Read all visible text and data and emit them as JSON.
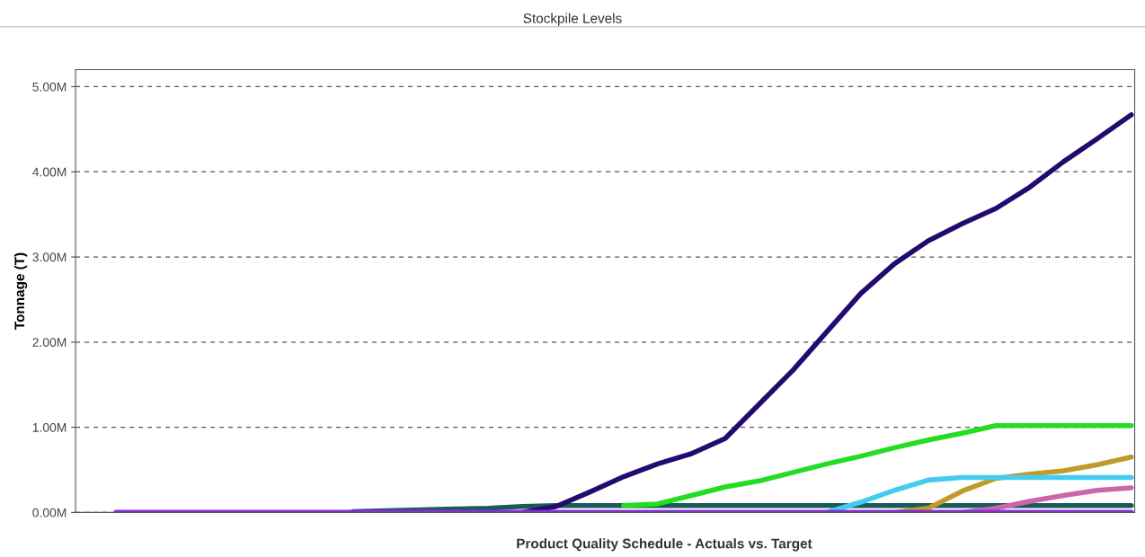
{
  "chart_data": {
    "type": "line",
    "title": "Stockpile Levels",
    "ylabel": "Tonnage (T)",
    "annotations": [
      "Product Quality Schedule - Actuals vs. Target"
    ],
    "categories": [
      null,
      null,
      null,
      null,
      null,
      null,
      null,
      null,
      null,
      null,
      null,
      null,
      null,
      null,
      null,
      null,
      null,
      null,
      null,
      null,
      null,
      null,
      null,
      null,
      null,
      null,
      null,
      null,
      null,
      null,
      null
    ],
    "ylim": [
      0,
      5200000
    ],
    "yticks": [
      {
        "value": 0,
        "label": "0.00M"
      },
      {
        "value": 1000000,
        "label": "1.00M"
      },
      {
        "value": 2000000,
        "label": "2.00M"
      },
      {
        "value": 3000000,
        "label": "3.00M"
      },
      {
        "value": 4000000,
        "label": "4.00M"
      },
      {
        "value": 5000000,
        "label": "5.00M"
      }
    ],
    "grid": "y",
    "line_style": "solid",
    "marker": "none",
    "series": [
      {
        "color": "#1a5a5a",
        "values": [
          null,
          null,
          null,
          null,
          null,
          null,
          null,
          10000,
          20000,
          30000,
          40000,
          50000,
          70000,
          80000,
          80000,
          80000,
          80000,
          80000,
          80000,
          80000,
          80000,
          80000,
          80000,
          80000,
          80000,
          80000,
          80000,
          80000,
          80000,
          80000,
          80000
        ]
      },
      {
        "color": "#cc66aa",
        "values": [
          null,
          null,
          null,
          null,
          null,
          null,
          null,
          null,
          null,
          null,
          null,
          null,
          null,
          null,
          null,
          null,
          null,
          null,
          null,
          null,
          null,
          null,
          null,
          null,
          null,
          0,
          50000,
          130000,
          200000,
          260000,
          290000
        ]
      },
      {
        "color": "#c09a2a",
        "values": [
          null,
          null,
          null,
          null,
          null,
          null,
          null,
          null,
          null,
          null,
          null,
          null,
          null,
          null,
          null,
          null,
          null,
          null,
          null,
          null,
          null,
          null,
          null,
          0,
          50000,
          250000,
          400000,
          450000,
          490000,
          560000,
          650000
        ]
      },
      {
        "color": "#44ccee",
        "values": [
          null,
          null,
          null,
          null,
          null,
          null,
          null,
          null,
          null,
          null,
          null,
          null,
          null,
          null,
          null,
          null,
          null,
          null,
          null,
          null,
          null,
          0,
          120000,
          260000,
          380000,
          410000,
          410000,
          410000,
          410000,
          410000,
          410000
        ]
      },
      {
        "color": "#22dd22",
        "values": [
          null,
          null,
          null,
          null,
          null,
          null,
          null,
          null,
          null,
          null,
          null,
          null,
          null,
          null,
          null,
          80000,
          100000,
          200000,
          300000,
          370000,
          470000,
          570000,
          660000,
          760000,
          850000,
          930000,
          1020000,
          1020000,
          1020000,
          1020000,
          1020000
        ]
      },
      {
        "color": "#230a6e",
        "values": [
          null,
          null,
          null,
          null,
          null,
          null,
          null,
          null,
          null,
          null,
          null,
          null,
          0,
          70000,
          240000,
          420000,
          570000,
          690000,
          870000,
          1270000,
          1670000,
          2120000,
          2570000,
          2920000,
          3190000,
          3390000,
          3570000,
          3820000,
          4120000,
          4390000,
          4670000
        ]
      },
      {
        "color": "#8a2be2",
        "values": [
          0,
          0,
          0,
          0,
          0,
          0,
          0,
          0,
          0,
          0,
          0,
          0,
          0,
          0,
          0,
          0,
          0,
          0,
          0,
          0,
          0,
          0,
          0,
          0,
          0,
          0,
          0,
          0,
          0,
          0,
          0
        ]
      }
    ]
  }
}
